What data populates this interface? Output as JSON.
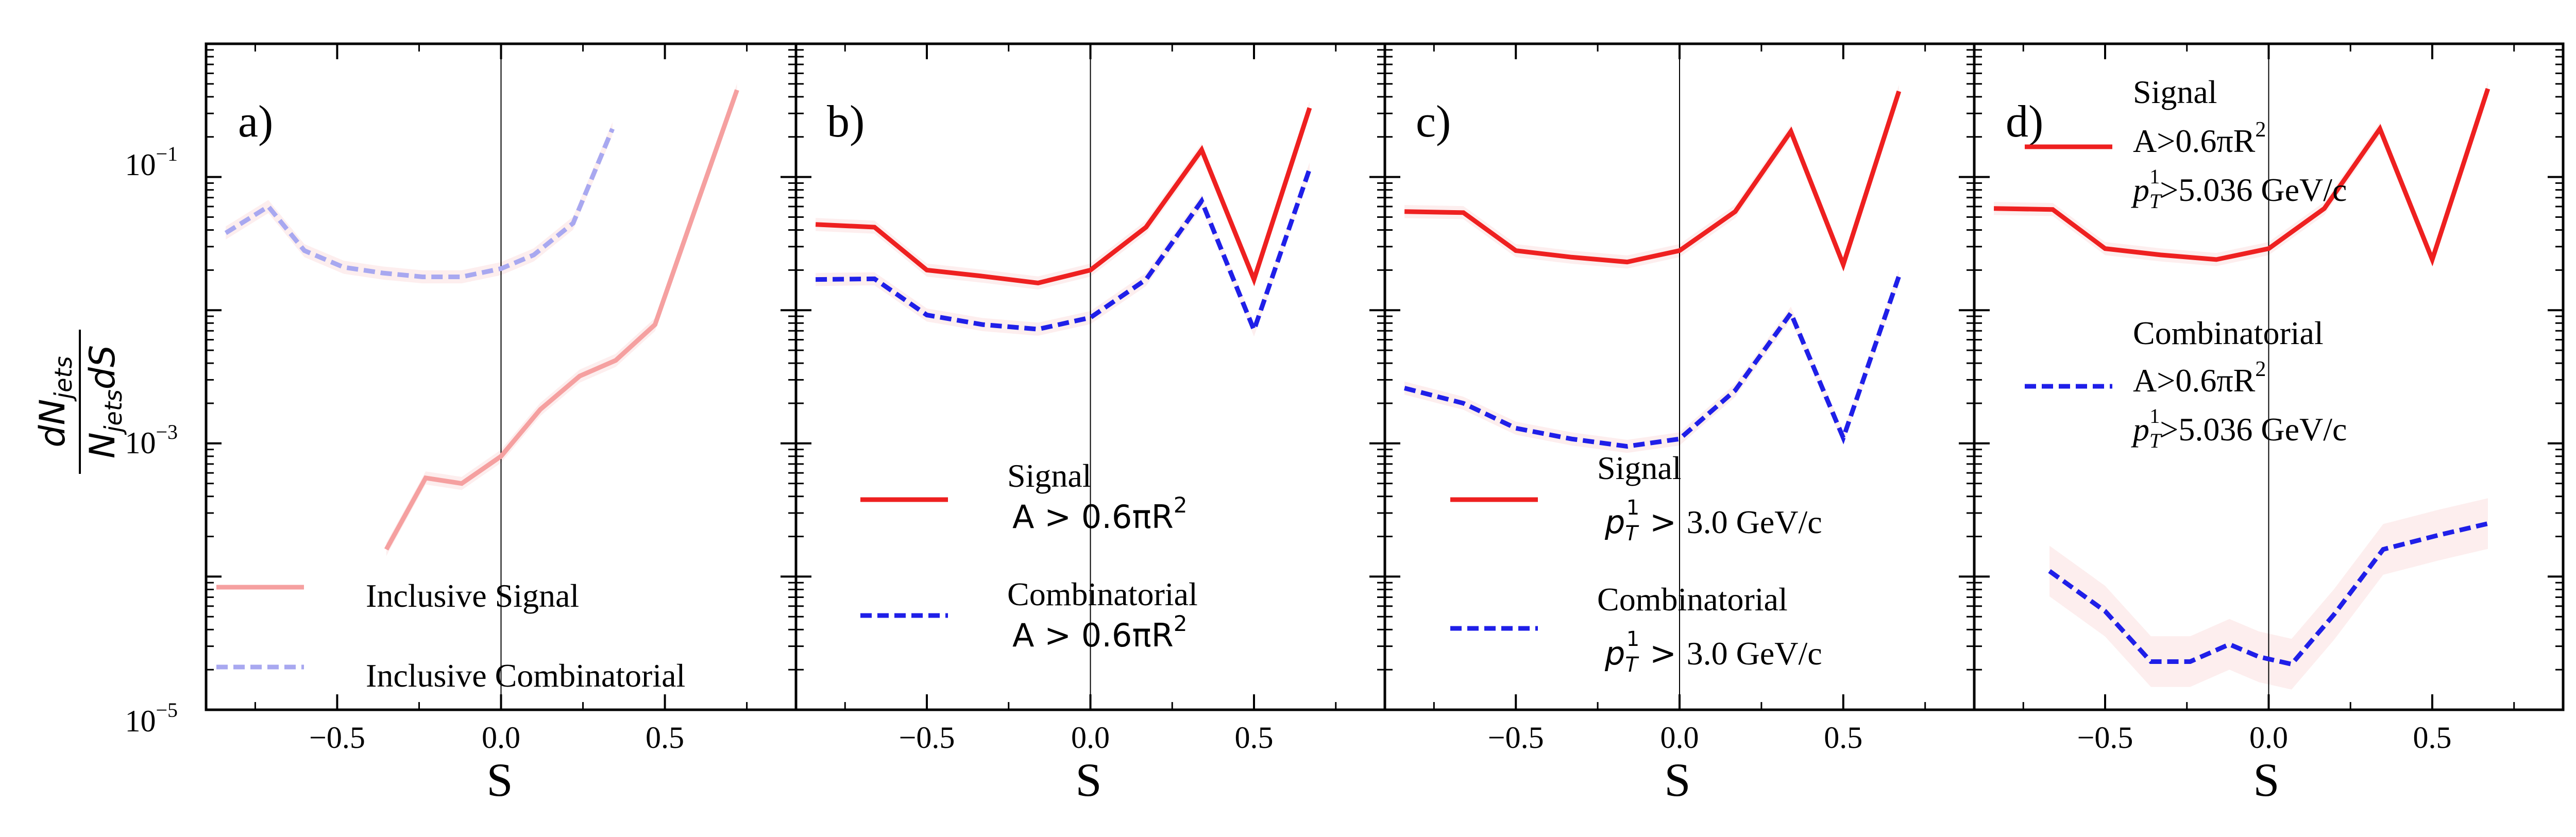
{
  "colors": {
    "signal": "#ee2020",
    "combinatorial": "#1f1fe8",
    "inclusive_signal": "#f5a0a0",
    "inclusive_combinatorial": "#a8a8f0",
    "band_signal": "#fbe2e2"
  },
  "chart_data": [
    {
      "type": "line",
      "panel": "a)",
      "xlabel": "S",
      "ylabel_num": "dN",
      "ylabel_num_sub": "jets",
      "ylabel_den_a": "N",
      "ylabel_den_sub": "jets",
      "ylabel_den_b": "dS",
      "yscale": "log",
      "xlim": [
        -0.9,
        0.9
      ],
      "ylim": [
        1e-05,
        1.0
      ],
      "xticks": [
        "−0.5",
        "0.0",
        "0.5"
      ],
      "yticks": [
        {
          "base": "10",
          "exp": "−1"
        },
        {
          "base": "10",
          "exp": "−3"
        },
        {
          "base": "10",
          "exp": "−5"
        }
      ],
      "legend_position": "lower-left",
      "series": [
        {
          "name": "Inclusive Signal",
          "legend": [
            "Inclusive Signal"
          ],
          "style": "solid",
          "color": "#f5a0a0",
          "x": [
            -0.35,
            -0.23,
            -0.12,
            0.0,
            0.12,
            0.24,
            0.35,
            0.47,
            0.59,
            0.72
          ],
          "y": [
            0.00016,
            0.00055,
            0.0005,
            0.0008,
            0.0018,
            0.0032,
            0.0042,
            0.0078,
            0.055,
            0.45
          ]
        },
        {
          "name": "Inclusive Combinatorial",
          "legend": [
            "Inclusive Combinatorial"
          ],
          "style": "dashed",
          "color": "#a8a8f0",
          "x": [
            -0.84,
            -0.71,
            -0.6,
            -0.48,
            -0.36,
            -0.24,
            -0.12,
            0.0,
            0.1,
            0.22,
            0.34
          ],
          "y": [
            0.038,
            0.06,
            0.028,
            0.021,
            0.019,
            0.0178,
            0.0178,
            0.0205,
            0.026,
            0.045,
            0.23
          ]
        }
      ]
    },
    {
      "type": "line",
      "panel": "b)",
      "xlabel": "S",
      "yscale": "log",
      "xlim": [
        -0.9,
        0.9
      ],
      "ylim": [
        1e-05,
        1.0
      ],
      "xticks": [
        "−0.5",
        "0.0",
        "0.5"
      ],
      "legend_position": "lower-left",
      "series": [
        {
          "name": "Signal",
          "legend": [
            "Signal",
            "A > 0.6πR",
            "2"
          ],
          "style": "solid",
          "color": "#ee2020",
          "x": [
            -0.84,
            -0.66,
            -0.5,
            -0.33,
            -0.16,
            0.0,
            0.17,
            0.34,
            0.5,
            0.67
          ],
          "y": [
            0.044,
            0.042,
            0.02,
            0.018,
            0.016,
            0.02,
            0.042,
            0.16,
            0.017,
            0.33
          ]
        },
        {
          "name": "Combinatorial",
          "legend": [
            "Combinatorial",
            "A > 0.6πR",
            "2"
          ],
          "style": "dashed",
          "color": "#1f1fe8",
          "x": [
            -0.84,
            -0.66,
            -0.5,
            -0.33,
            -0.16,
            0.0,
            0.17,
            0.34,
            0.5,
            0.67
          ],
          "y": [
            0.017,
            0.0172,
            0.0092,
            0.0078,
            0.0072,
            0.0088,
            0.017,
            0.066,
            0.0071,
            0.115
          ]
        }
      ]
    },
    {
      "type": "line",
      "panel": "c)",
      "xlabel": "S",
      "yscale": "log",
      "xlim": [
        -0.9,
        0.9
      ],
      "ylim": [
        1e-05,
        1.0
      ],
      "xticks": [
        "−0.5",
        "0.0",
        "0.5"
      ],
      "legend_position": "lower-left",
      "series": [
        {
          "name": "Signal",
          "legend": [
            "Signal",
            "p",
            "T",
            "1",
            " > ",
            "3.0 GeV/c"
          ],
          "style": "solid",
          "color": "#ee2020",
          "x": [
            -0.84,
            -0.66,
            -0.5,
            -0.33,
            -0.16,
            0.0,
            0.17,
            0.34,
            0.5,
            0.67
          ],
          "y": [
            0.055,
            0.054,
            0.028,
            0.025,
            0.023,
            0.028,
            0.055,
            0.22,
            0.022,
            0.44
          ]
        },
        {
          "name": "Combinatorial",
          "legend": [
            "Combinatorial",
            "p",
            "T",
            "1",
            " > ",
            "3.0 GeV/c"
          ],
          "style": "dashed",
          "color": "#1f1fe8",
          "x": [
            -0.84,
            -0.66,
            -0.5,
            -0.33,
            -0.16,
            0.0,
            0.17,
            0.34,
            0.5,
            0.67
          ],
          "y": [
            0.0026,
            0.002,
            0.0013,
            0.00108,
            0.00095,
            0.00108,
            0.0025,
            0.0095,
            0.0011,
            0.018
          ]
        }
      ]
    },
    {
      "type": "line",
      "panel": "d)",
      "xlabel": "S",
      "yscale": "log",
      "xlim": [
        -0.9,
        0.9
      ],
      "ylim": [
        1e-05,
        1.0
      ],
      "xticks": [
        "−0.5",
        "0.0",
        "0.5"
      ],
      "legend_position": "upper-left",
      "series": [
        {
          "name": "Signal",
          "legend": [
            "Signal",
            "A>0.6πR",
            "2",
            "p",
            "T",
            "1",
            ">5.036 GeV/c"
          ],
          "style": "solid",
          "color": "#ee2020",
          "x": [
            -0.84,
            -0.66,
            -0.5,
            -0.33,
            -0.16,
            0.0,
            0.17,
            0.34,
            0.5,
            0.67
          ],
          "y": [
            0.058,
            0.057,
            0.029,
            0.026,
            0.024,
            0.029,
            0.058,
            0.23,
            0.024,
            0.46
          ]
        },
        {
          "name": "Combinatorial",
          "legend": [
            "Combinatorial",
            "A>0.6πR",
            "2",
            "p",
            "T",
            "1",
            ">5.036 GeV/c"
          ],
          "style": "dashed",
          "color": "#1f1fe8",
          "x": [
            -0.67,
            -0.5,
            -0.36,
            -0.24,
            -0.12,
            -0.03,
            0.07,
            0.2,
            0.35,
            0.52,
            0.67
          ],
          "y": [
            0.00011,
            5.5e-05,
            2.3e-05,
            2.3e-05,
            3.1e-05,
            2.5e-05,
            2.2e-05,
            5.2e-05,
            0.00016,
            0.000205,
            0.00025
          ]
        }
      ]
    }
  ]
}
